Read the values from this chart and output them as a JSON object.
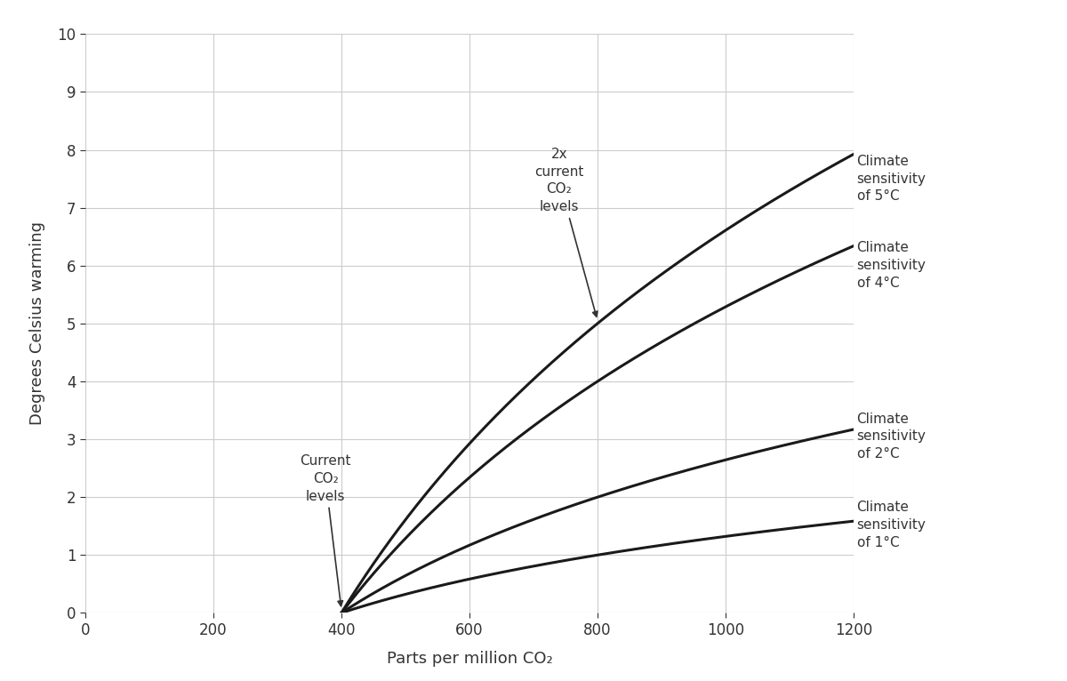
{
  "title": "",
  "xlabel": "Parts per million CO₂",
  "ylabel": "Degrees Celsius warming",
  "xlim": [
    0,
    1200
  ],
  "ylim": [
    0,
    10
  ],
  "xticks": [
    0,
    200,
    400,
    600,
    800,
    1000,
    1200
  ],
  "yticks": [
    0,
    1,
    2,
    3,
    4,
    5,
    6,
    7,
    8,
    9,
    10
  ],
  "current_co2": 400,
  "double_co2": 800,
  "sensitivities": [
    1,
    2,
    4,
    5
  ],
  "line_color": "#1a1a1a",
  "background_color": "#ffffff",
  "grid_color": "#cccccc",
  "annotation_current": "Current\nCO₂\nlevels",
  "annotation_double": "2x\ncurrent\nCO₂\nlevels",
  "axis_label_fontsize": 13,
  "tick_label_fontsize": 12,
  "annotation_fontsize": 11,
  "curve_label_fontsize": 11,
  "line_width": 2.2,
  "curve_labels": [
    {
      "sens": 5,
      "label": "Climate\nsensitivity\nof 5°C",
      "y_pos": 7.5
    },
    {
      "sens": 4,
      "label": "Climate\nsensitivity\nof 4°C",
      "y_pos": 6.0
    },
    {
      "sens": 2,
      "label": "Climate\nsensitivity\nof 2°C",
      "y_pos": 3.05
    },
    {
      "sens": 1,
      "label": "Climate\nsensitivity\nof 1°C",
      "y_pos": 1.52
    }
  ]
}
